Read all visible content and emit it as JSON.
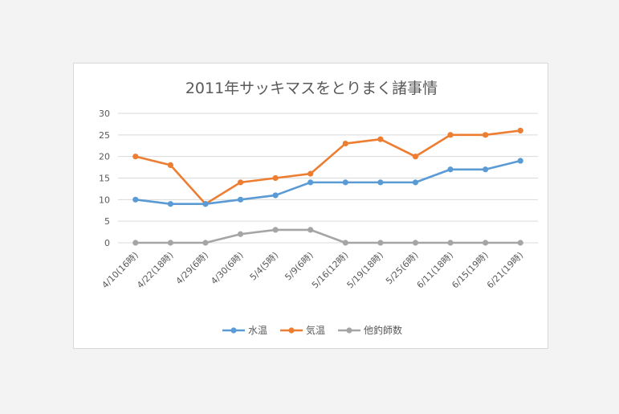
{
  "chart_data": {
    "type": "line",
    "title": "2011年サッキマスをとりまく諸事情",
    "categories": [
      "4/10(16時)",
      "4/22(18時)",
      "4/29(6時)",
      "4/30(6時)",
      "5/4(5時)",
      "5/9(6時)",
      "5/16(12時)",
      "5/19(18時)",
      "5/25(6時)",
      "6/11(18時)",
      "6/15(19時)",
      "6/21(19時)"
    ],
    "series": [
      {
        "name": "水温",
        "color": "#5b9bd5",
        "values": [
          10,
          9,
          9,
          10,
          11,
          14,
          14,
          14,
          14,
          17,
          17,
          19
        ]
      },
      {
        "name": "気温",
        "color": "#ed7d31",
        "values": [
          20,
          18,
          9,
          14,
          15,
          16,
          23,
          24,
          20,
          25,
          25,
          26
        ]
      },
      {
        "name": "他釣師数",
        "color": "#a5a5a5",
        "values": [
          0,
          0,
          0,
          2,
          3,
          3,
          0,
          0,
          0,
          0,
          0,
          0
        ]
      }
    ],
    "ylim": [
      0,
      30
    ],
    "yticks": [
      "0",
      "5",
      "10",
      "15",
      "20",
      "25",
      "30"
    ],
    "grid": true,
    "legend_position": "bottom",
    "xlabel": "",
    "ylabel": ""
  }
}
